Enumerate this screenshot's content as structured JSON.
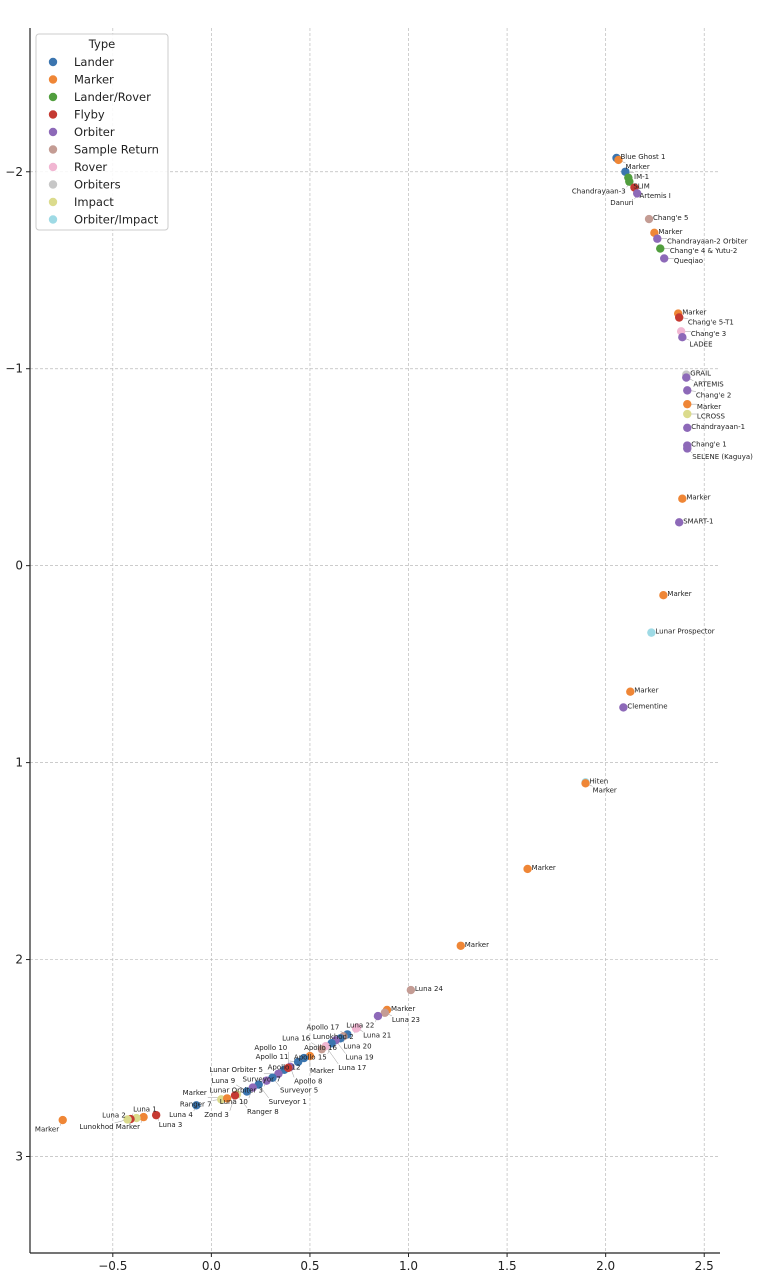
{
  "chart_data": {
    "type": "scatter",
    "title": "",
    "xlabel": "",
    "ylabel": "",
    "xlim": [
      -0.92,
      2.58
    ],
    "ylim": [
      3.49,
      -2.73
    ],
    "y_inverted": true,
    "grid": true,
    "xticks": [
      "−0.5",
      "0.0",
      "0.5",
      "1.0",
      "1.5",
      "2.0",
      "2.5"
    ],
    "xtick_values": [
      -0.5,
      0,
      0.5,
      1,
      1.5,
      2,
      2.5
    ],
    "yticks": [
      "−2",
      "−1",
      "0",
      "1",
      "2",
      "3"
    ],
    "ytick_values": [
      -2,
      -1,
      0,
      1,
      2,
      3
    ],
    "legend": {
      "title": "Type",
      "placement": "top-left",
      "entries": [
        {
          "name": "Lander",
          "color": "#3b75af"
        },
        {
          "name": "Marker",
          "color": "#ef8636"
        },
        {
          "name": "Lander/Rover",
          "color": "#519e3e"
        },
        {
          "name": "Flyby",
          "color": "#c53a32"
        },
        {
          "name": "Orbiter",
          "color": "#8d69b8"
        },
        {
          "name": "Sample Return",
          "color": "#c49c94"
        },
        {
          "name": "Rover",
          "color": "#f1b6d2"
        },
        {
          "name": "Orbiters",
          "color": "#c7c7c7"
        },
        {
          "name": "Impact",
          "color": "#dbdb8d"
        },
        {
          "name": "Orbiter/Impact",
          "color": "#9edae5"
        }
      ]
    },
    "points": [
      {
        "label": "Blue Ghost 1",
        "type": "Lander",
        "x": 2.055,
        "y": -2.07
      },
      {
        "label": "Marker",
        "type": "Marker",
        "x": 2.065,
        "y": -2.06
      },
      {
        "label": "IM-1",
        "type": "Lander",
        "x": 2.1,
        "y": -2.0
      },
      {
        "label": "SLIM",
        "type": "Lander/Rover",
        "x": 2.115,
        "y": -1.97
      },
      {
        "label": "Chandrayaan-3",
        "type": "Lander/Rover",
        "x": 2.12,
        "y": -1.95
      },
      {
        "label": "Artemis I",
        "type": "Flyby",
        "x": 2.146,
        "y": -1.92
      },
      {
        "label": "Danuri",
        "type": "Orbiter",
        "x": 2.16,
        "y": -1.89
      },
      {
        "label": "Chang'e 5",
        "type": "Sample Return",
        "x": 2.22,
        "y": -1.76
      },
      {
        "label": "Marker",
        "type": "Marker",
        "x": 2.247,
        "y": -1.69
      },
      {
        "label": "Chandrayaan-2 Orbiter",
        "type": "Orbiter",
        "x": 2.262,
        "y": -1.66
      },
      {
        "label": "Chang'e 4 & Yutu-2",
        "type": "Lander/Rover",
        "x": 2.277,
        "y": -1.61
      },
      {
        "label": "Queqiao",
        "type": "Orbiter",
        "x": 2.297,
        "y": -1.56
      },
      {
        "label": "Marker",
        "type": "Marker",
        "x": 2.368,
        "y": -1.28
      },
      {
        "label": "Chang'e 5-T1",
        "type": "Flyby",
        "x": 2.373,
        "y": -1.26
      },
      {
        "label": "Chang'e 3",
        "type": "Rover",
        "x": 2.383,
        "y": -1.19
      },
      {
        "label": "LADEE",
        "type": "Orbiter",
        "x": 2.389,
        "y": -1.16
      },
      {
        "label": "GRAIL",
        "type": "Orbiters",
        "x": 2.409,
        "y": -0.97
      },
      {
        "label": "ARTEMIS",
        "type": "Orbiter",
        "x": 2.409,
        "y": -0.955
      },
      {
        "label": "Chang'e 2",
        "type": "Orbiter",
        "x": 2.414,
        "y": -0.89
      },
      {
        "label": "Marker",
        "type": "Marker",
        "x": 2.414,
        "y": -0.82
      },
      {
        "label": "LCROSS",
        "type": "Impact",
        "x": 2.414,
        "y": -0.77
      },
      {
        "label": "Chandrayaan-1",
        "type": "Orbiter",
        "x": 2.414,
        "y": -0.7
      },
      {
        "label": "Chang'e 1",
        "type": "Orbiter",
        "x": 2.414,
        "y": -0.61
      },
      {
        "label": "SELENE (Kaguya)",
        "type": "Orbiter",
        "x": 2.414,
        "y": -0.595
      },
      {
        "label": "Marker",
        "type": "Marker",
        "x": 2.389,
        "y": -0.34
      },
      {
        "label": "SMART-1",
        "type": "Orbiter",
        "x": 2.373,
        "y": -0.22
      },
      {
        "label": "Marker",
        "type": "Marker",
        "x": 2.293,
        "y": 0.15
      },
      {
        "label": "Lunar Prospector",
        "type": "Orbiter/Impact",
        "x": 2.232,
        "y": 0.34
      },
      {
        "label": "Marker",
        "type": "Marker",
        "x": 2.125,
        "y": 0.64
      },
      {
        "label": "Clementine",
        "type": "Orbiter",
        "x": 2.09,
        "y": 0.72
      },
      {
        "label": "Hiten",
        "type": "Orbiter/Impact",
        "x": 1.898,
        "y": 1.1
      },
      {
        "label": "Marker",
        "type": "Marker",
        "x": 1.898,
        "y": 1.105
      },
      {
        "label": "Marker",
        "type": "Marker",
        "x": 1.604,
        "y": 1.54
      },
      {
        "label": "Marker",
        "type": "Marker",
        "x": 1.265,
        "y": 1.93
      },
      {
        "label": "Luna 24",
        "type": "Sample Return",
        "x": 1.012,
        "y": 2.155
      },
      {
        "label": "Marker",
        "type": "Marker",
        "x": 0.891,
        "y": 2.256
      },
      {
        "label": "Luna 23",
        "type": "Sample Return",
        "x": 0.88,
        "y": 2.27
      },
      {
        "label": "Luna 22",
        "type": "Orbiter",
        "x": 0.845,
        "y": 2.287
      },
      {
        "label": "Luna 21",
        "type": "Rover",
        "x": 0.734,
        "y": 2.35
      },
      {
        "label": "Lunokhod 2",
        "type": "Rover",
        "x": 0.74,
        "y": 2.345
      },
      {
        "label": "Apollo 17",
        "type": "Lander",
        "x": 0.69,
        "y": 2.38
      },
      {
        "label": "Luna 20",
        "type": "Sample Return",
        "x": 0.67,
        "y": 2.39
      },
      {
        "label": "Apollo 16",
        "type": "Lander",
        "x": 0.655,
        "y": 2.4
      },
      {
        "label": "Luna 19",
        "type": "Orbiter",
        "x": 0.63,
        "y": 2.41
      },
      {
        "label": "Apollo 15",
        "type": "Lander",
        "x": 0.61,
        "y": 2.425
      },
      {
        "label": "Luna 17",
        "type": "Rover",
        "x": 0.58,
        "y": 2.44
      },
      {
        "label": "Luna 16",
        "type": "Sample Return",
        "x": 0.56,
        "y": 2.455
      },
      {
        "label": "Marker",
        "type": "Marker",
        "x": 0.5,
        "y": 2.49
      },
      {
        "label": "Apollo 12",
        "type": "Lander",
        "x": 0.47,
        "y": 2.5
      },
      {
        "label": "Apollo 11",
        "type": "Lander",
        "x": 0.44,
        "y": 2.52
      },
      {
        "label": "Apollo 8",
        "type": "Orbiter",
        "x": 0.4,
        "y": 2.545
      },
      {
        "label": "Surveyor 7",
        "type": "Lander",
        "x": 0.37,
        "y": 2.56
      },
      {
        "label": "Apollo 10",
        "type": "Flyby",
        "x": 0.39,
        "y": 2.55
      },
      {
        "label": "Lunar Orbiter 5",
        "type": "Orbiter",
        "x": 0.34,
        "y": 2.58
      },
      {
        "label": "Surveyor 5",
        "type": "Lander",
        "x": 0.31,
        "y": 2.6
      },
      {
        "label": "Lunar Orbiter 3",
        "type": "Orbiter",
        "x": 0.28,
        "y": 2.615
      },
      {
        "label": "Surveyor 1",
        "type": "Lander",
        "x": 0.24,
        "y": 2.635
      },
      {
        "label": "Luna 10",
        "type": "Orbiter",
        "x": 0.21,
        "y": 2.65
      },
      {
        "label": "Luna 9",
        "type": "Lander",
        "x": 0.18,
        "y": 2.67
      },
      {
        "label": "Ranger 8",
        "type": "Impact",
        "x": 0.13,
        "y": 2.685
      },
      {
        "label": "Zond 3",
        "type": "Flyby",
        "x": 0.12,
        "y": 2.69
      },
      {
        "label": "Ranger 7",
        "type": "Impact",
        "x": 0.05,
        "y": 2.71
      },
      {
        "label": "Marker",
        "type": "Marker",
        "x": 0.08,
        "y": 2.705
      },
      {
        "label": "Luna 4",
        "type": "Lander",
        "x": -0.076,
        "y": 2.74
      },
      {
        "label": "Luna 3",
        "type": "Flyby",
        "x": -0.28,
        "y": 2.79
      },
      {
        "label": "Marker",
        "type": "Marker",
        "x": -0.344,
        "y": 2.8
      },
      {
        "label": "Luna 2",
        "type": "Impact",
        "x": -0.38,
        "y": 2.805
      },
      {
        "label": "Luna 1",
        "type": "Flyby",
        "x": -0.41,
        "y": 2.81
      },
      {
        "label": "Lunokhod",
        "type": "Impact",
        "x": -0.425,
        "y": 2.812
      },
      {
        "label": "Marker",
        "type": "Marker",
        "x": -0.754,
        "y": 2.815
      }
    ]
  }
}
